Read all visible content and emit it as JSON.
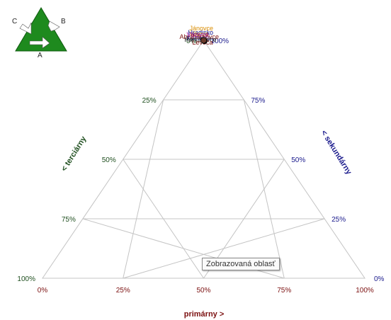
{
  "logo": {
    "letters": [
      "C",
      "B",
      "A"
    ]
  },
  "tooltip": {
    "text": "Zobrazovaná oblasť"
  },
  "colors": {
    "grid": "#c4c4c4",
    "bottom_axis": "#7b1010",
    "right_axis": "#1a1a8c",
    "left_axis": "#1f4f1f",
    "logo_green": "#1e8a1e"
  },
  "chart_data": {
    "type": "scatter",
    "subtype": "ternary",
    "axes": {
      "bottom": {
        "title": "primárny >",
        "ticks": [
          "0%",
          "25%",
          "50%",
          "75%",
          "100%"
        ]
      },
      "right": {
        "title": "< sekundárny",
        "ticks": [
          "0%",
          "25%",
          "50%",
          "75%",
          "100%"
        ]
      },
      "left": {
        "title": "< terciárny",
        "ticks": [
          "0%",
          "25%",
          "50%",
          "75%",
          "100%"
        ]
      }
    },
    "grid": true,
    "points": [
      {
        "label": "Hradisko",
        "primary": 0.0,
        "tertiary": 0.0,
        "color": "#000080"
      },
      {
        "label": "Jánovce",
        "primary": 0.0,
        "tertiary": 0.0,
        "color": "#d98c00"
      },
      {
        "label": "Vikova",
        "primary": 0.0,
        "tertiary": 0.0,
        "color": "#cc8800"
      },
      {
        "label": "Vikovce",
        "primary": 0.0,
        "tertiary": 0.0,
        "color": "#a000a0"
      },
      {
        "label": "Kvetnica",
        "primary": 0.0,
        "tertiary": 0.0,
        "color": "#1a1a8c"
      },
      {
        "label": "Abrahámovce",
        "primary": 0.0,
        "tertiary": 0.0,
        "color": "#7b1010"
      },
      {
        "label": "Hanušovce",
        "primary": 0.0,
        "tertiary": 0.0,
        "color": "#222222"
      },
      {
        "label": "Levoča",
        "primary": 0.0,
        "tertiary": 0.0,
        "color": "#7b1010"
      },
      {
        "label": "",
        "primary": 0.0,
        "tertiary": 0.0,
        "color": "#3b9c3b"
      },
      {
        "label": "",
        "primary": 0.0,
        "tertiary": 0.0,
        "color": "#e03a8c"
      },
      {
        "label": "",
        "primary": 0.0,
        "tertiary": 0.0,
        "color": "#2b7bd8"
      },
      {
        "label": "",
        "primary": 0.0,
        "tertiary": 0.0,
        "color": "#d07020"
      },
      {
        "label": "",
        "primary": 0.0,
        "tertiary": 0.0,
        "color": "#333333"
      },
      {
        "label": "",
        "primary": 0.0,
        "tertiary": 0.0,
        "color": "#6b3a2a"
      }
    ]
  }
}
